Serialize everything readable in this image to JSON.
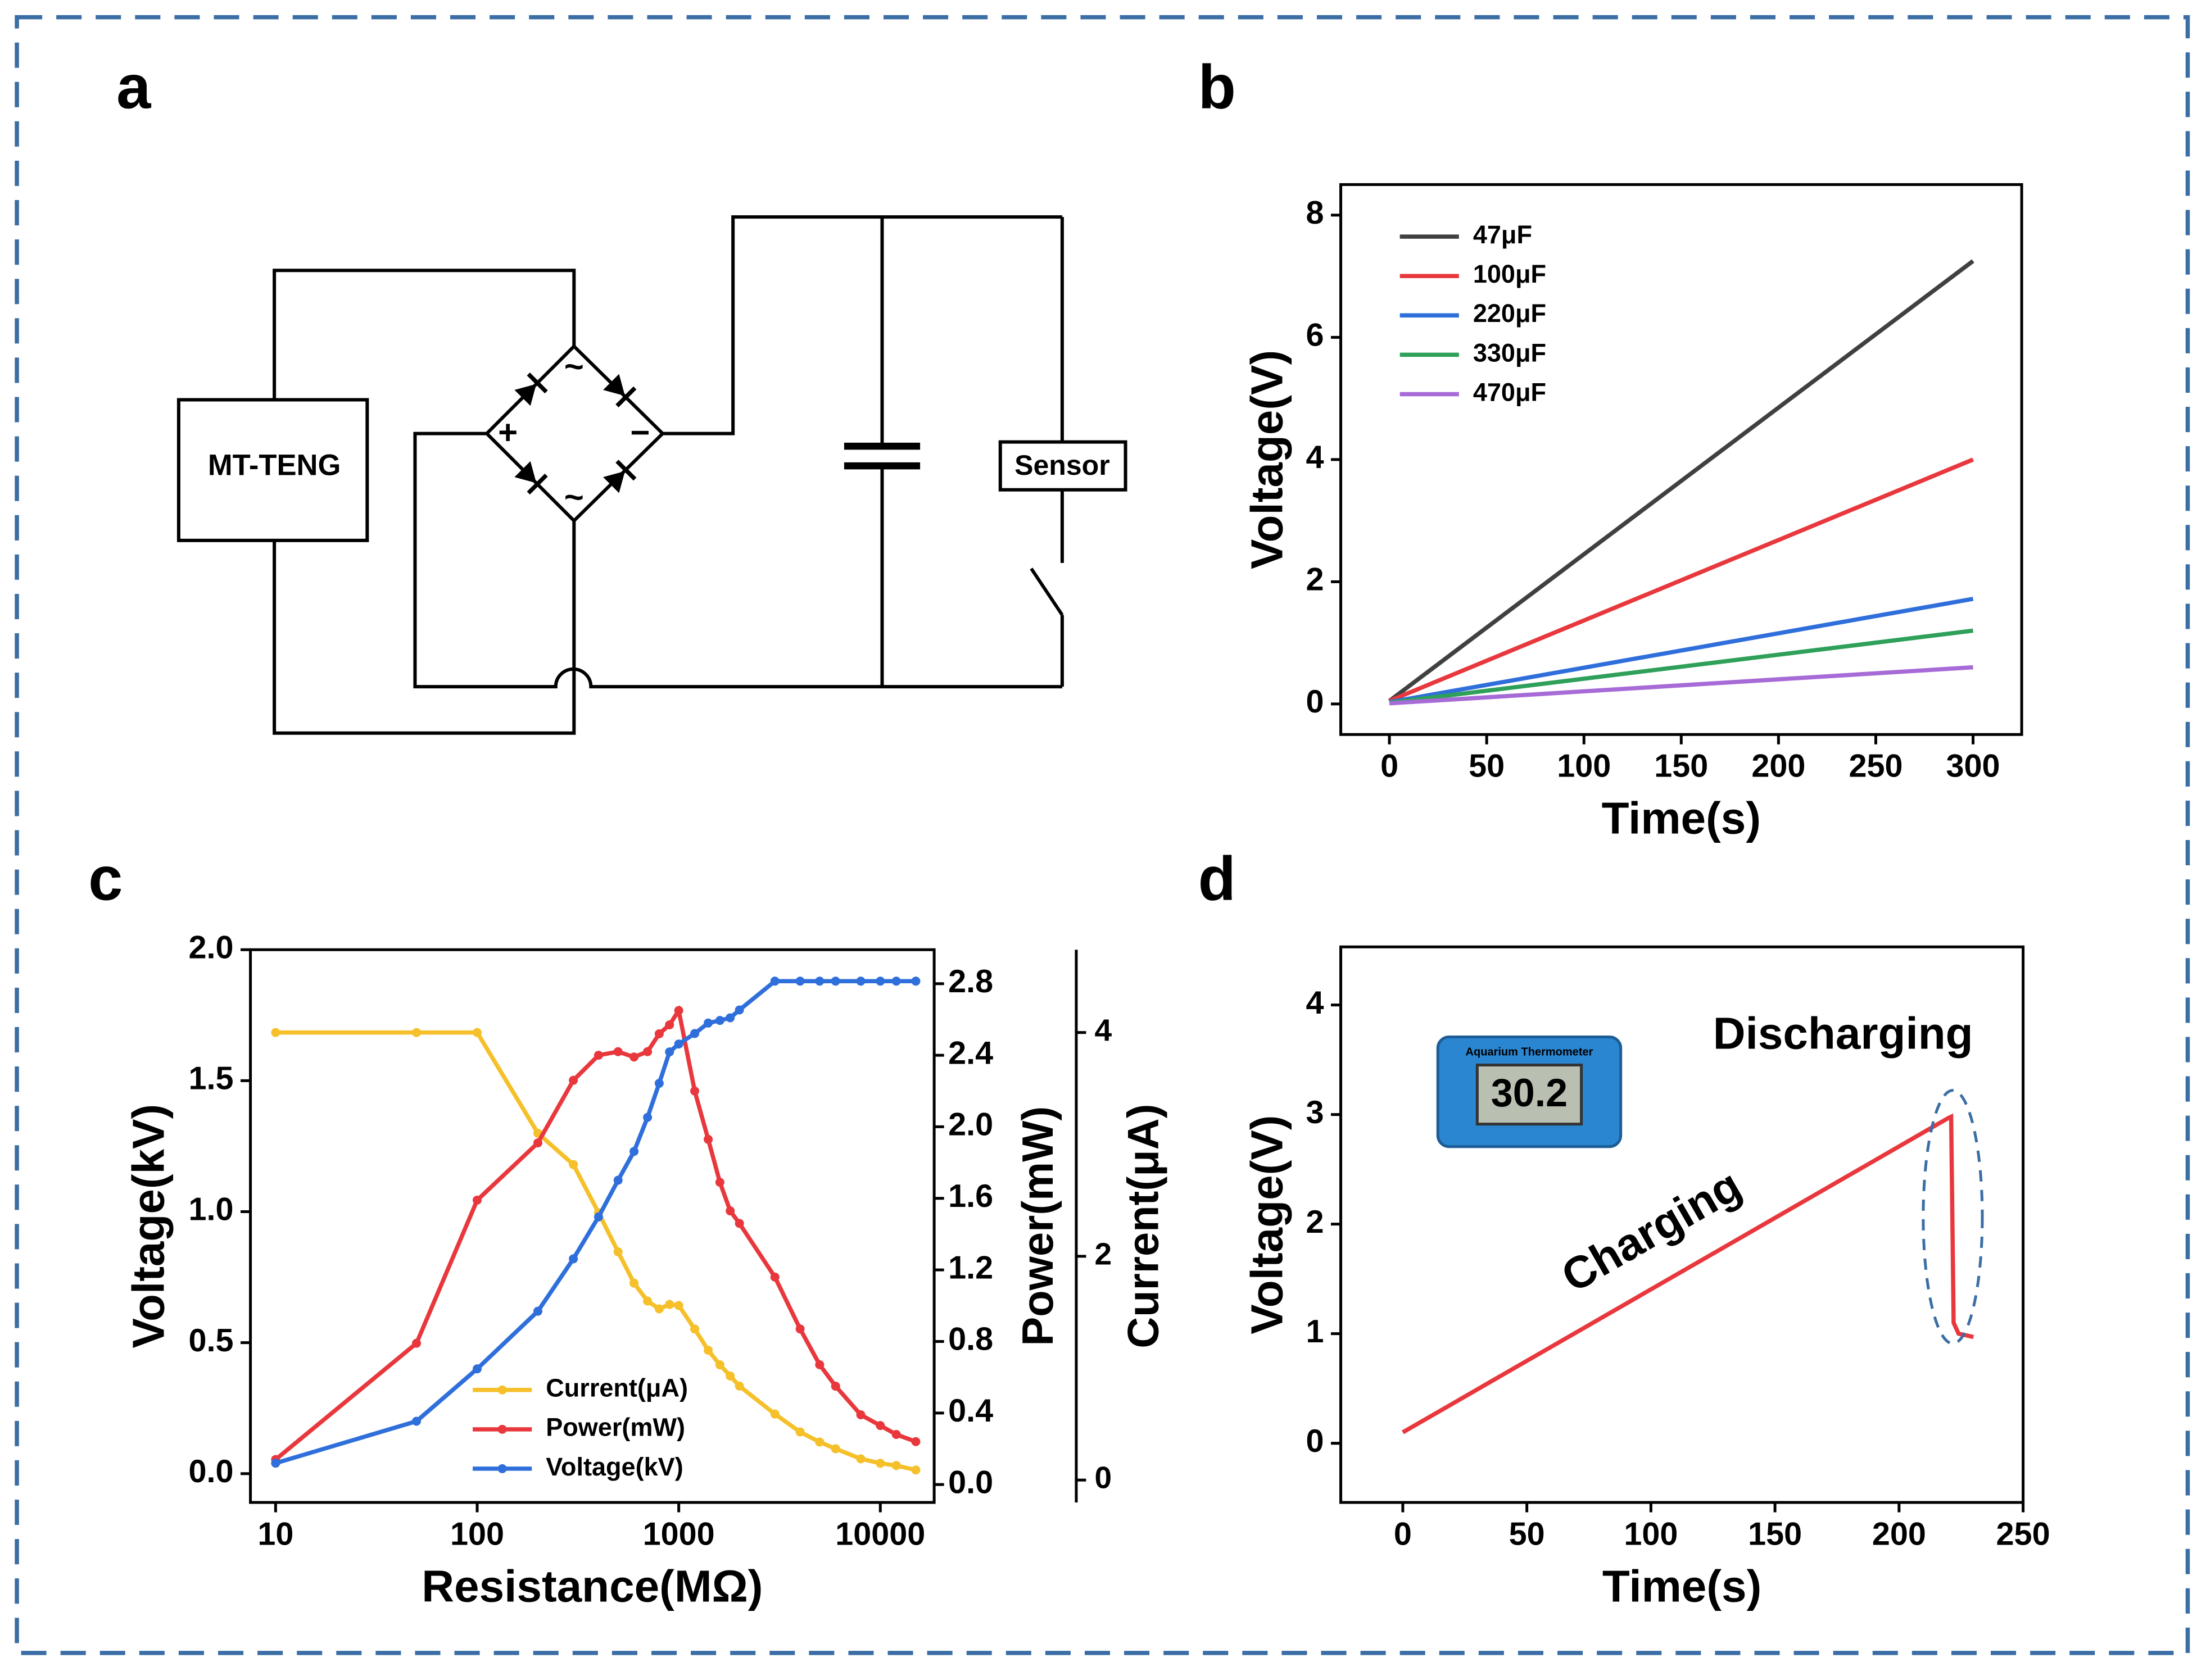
{
  "diagram": {
    "panel": "a",
    "source": "MT-TENG",
    "load": "Sensor",
    "ac_top": "~",
    "ac_bottom": "~",
    "plus": "+",
    "minus": "−"
  },
  "chart_data": [
    {
      "type": "line",
      "panel": "b",
      "xlabel": "Time(s)",
      "ylabel": "Voltage(V)",
      "xlim": [
        -25,
        325
      ],
      "xticks": [
        0,
        50,
        100,
        150,
        200,
        250,
        300
      ],
      "ylim": [
        -0.5,
        8.5
      ],
      "yticks": [
        0,
        2,
        4,
        6,
        8
      ],
      "legend": "upper left",
      "x": [
        0,
        300
      ],
      "series": [
        {
          "name": "47μF",
          "color": "#404040",
          "values": [
            0.05,
            7.25
          ]
        },
        {
          "name": "100μF",
          "color": "#e8383d",
          "values": [
            0.05,
            4.0
          ]
        },
        {
          "name": "220μF",
          "color": "#2f6fdb",
          "values": [
            0.03,
            1.72
          ]
        },
        {
          "name": "330μF",
          "color": "#2ea05a",
          "values": [
            0.02,
            1.2
          ]
        },
        {
          "name": "470μF",
          "color": "#a66bd6",
          "values": [
            0.01,
            0.6
          ]
        }
      ]
    },
    {
      "type": "line",
      "panel": "c",
      "xlabel": "Resistance(MΩ)",
      "ylabel": "Voltage(kV)",
      "y2label": "Power(mW)",
      "y3label": "Current(μA)",
      "xscale": "log",
      "xlim": [
        7.5,
        18500
      ],
      "xticks": [
        10,
        100,
        1000,
        10000
      ],
      "ylim": [
        -0.11,
        2.0
      ],
      "yticks": [
        {
          "value": 0,
          "label": "0.0"
        },
        0.5,
        {
          "value": 1,
          "label": "1.0"
        },
        1.5,
        {
          "value": 2,
          "label": "2.0"
        }
      ],
      "y2lim": [
        -0.1,
        2.99
      ],
      "y2ticks": [
        {
          "value": 0,
          "label": "0.0"
        },
        0.4,
        0.8,
        1.2,
        1.6,
        {
          "value": 2,
          "label": "2.0"
        },
        2.4,
        2.8
      ],
      "y3lim": [
        -0.2,
        4.74
      ],
      "y3ticks": [
        0,
        2,
        4
      ],
      "markers": true,
      "legend": "lower center",
      "x": [
        10,
        50,
        100,
        200,
        300,
        400,
        500,
        600,
        700,
        800,
        900,
        1000,
        1200,
        1400,
        1600,
        1800,
        2000,
        3000,
        4000,
        5000,
        6000,
        8000,
        10000,
        12000,
        15000
      ],
      "series": [
        {
          "name": "Current(μA)",
          "color": "#f5c02a",
          "axis": "y3",
          "values": [
            4.0,
            4.0,
            4.0,
            3.1,
            2.82,
            2.39,
            2.04,
            1.76,
            1.6,
            1.53,
            1.57,
            1.56,
            1.35,
            1.16,
            1.03,
            0.93,
            0.84,
            0.59,
            0.43,
            0.34,
            0.28,
            0.19,
            0.15,
            0.13,
            0.09
          ]
        },
        {
          "name": "Power(mW)",
          "color": "#e8383d",
          "axis": "y2",
          "values": [
            0.14,
            0.79,
            1.59,
            1.91,
            2.26,
            2.4,
            2.42,
            2.39,
            2.42,
            2.52,
            2.57,
            2.65,
            2.2,
            1.93,
            1.69,
            1.53,
            1.46,
            1.16,
            0.87,
            0.67,
            0.55,
            0.39,
            0.33,
            0.28,
            0.24
          ]
        },
        {
          "name": "Voltage(kV)",
          "color": "#2f6fdb",
          "axis": "y",
          "values": [
            0.04,
            0.2,
            0.4,
            0.62,
            0.82,
            0.98,
            1.12,
            1.23,
            1.36,
            1.49,
            1.61,
            1.64,
            1.68,
            1.72,
            1.73,
            1.74,
            1.77,
            1.88,
            1.88,
            1.88,
            1.88,
            1.88,
            1.88,
            1.88,
            1.88
          ]
        }
      ]
    },
    {
      "type": "line",
      "panel": "d",
      "xlabel": "Time(s)",
      "ylabel": "Voltage(V)",
      "xlim": [
        -25,
        250
      ],
      "xticks": [
        0,
        50,
        100,
        150,
        200,
        250
      ],
      "ylim": [
        -0.54,
        4.53
      ],
      "yticks": [
        0,
        1,
        2,
        3,
        4
      ],
      "x": [
        0,
        220,
        221,
        222,
        224,
        230
      ],
      "values": [
        0.1,
        2.97,
        2.98,
        1.1,
        1.0,
        0.97
      ],
      "color": "#e8383d",
      "annotations": [
        {
          "text": "Charging"
        },
        {
          "text": "Discharging"
        }
      ],
      "inset": {
        "brand": "Aquarium Thermometer",
        "reading": "30.2"
      }
    }
  ]
}
